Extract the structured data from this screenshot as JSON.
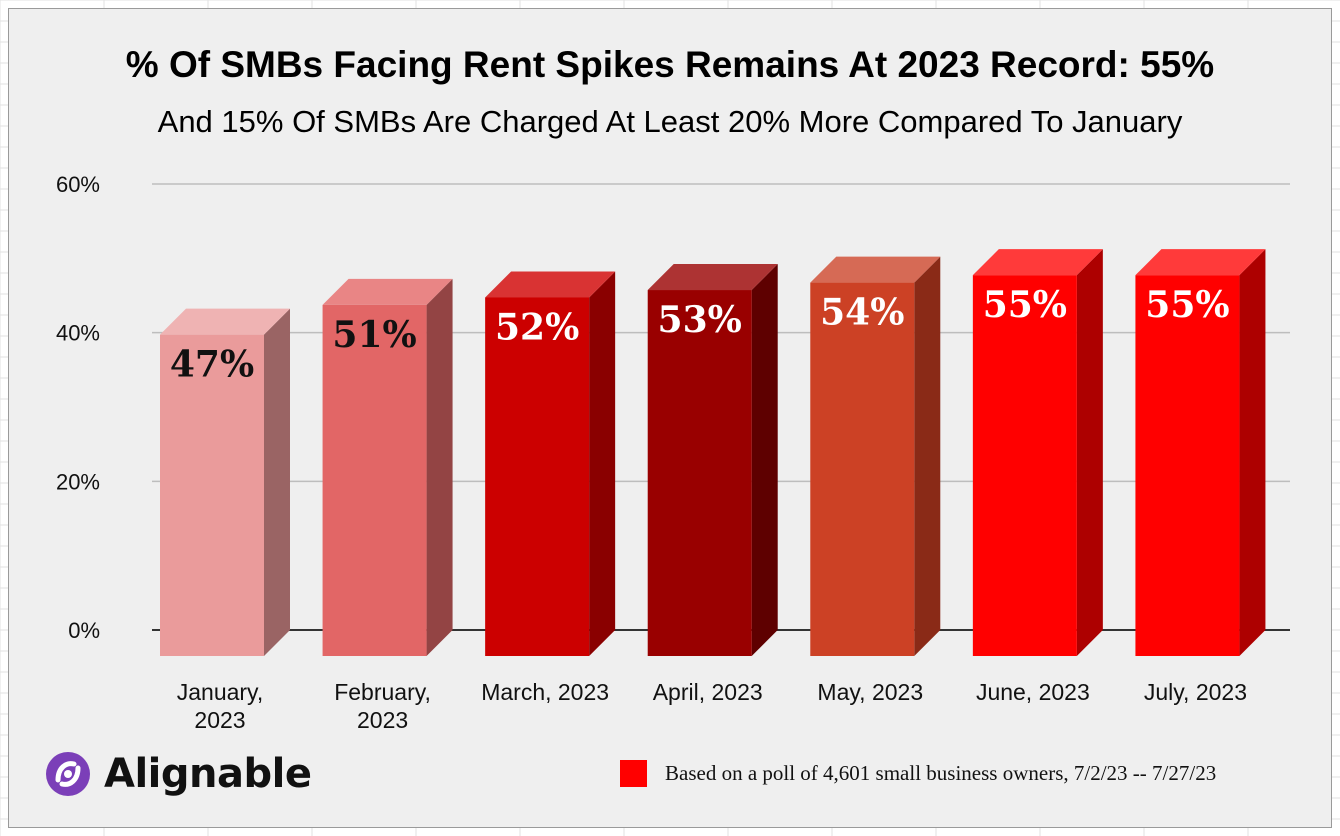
{
  "chart_data": {
    "type": "bar",
    "title": "% Of SMBs Facing Rent Spikes Remains At 2023 Record: 55%",
    "subtitle": "And 15% Of SMBs Are Charged At Least 20% More Compared To January",
    "xlabel": "",
    "ylabel": "",
    "ylim": [
      0,
      60
    ],
    "y_ticks": [
      "0%",
      "20%",
      "40%",
      "60%"
    ],
    "y_tick_values": [
      0,
      20,
      40,
      60
    ],
    "grid": true,
    "categories": [
      "January, 2023",
      "February, 2023",
      "March, 2023",
      "April, 2023",
      "May, 2023",
      "June, 2023",
      "July, 2023"
    ],
    "category_lines": [
      [
        "January,",
        "2023"
      ],
      [
        "February,",
        "2023"
      ],
      [
        "March, 2023"
      ],
      [
        "April, 2023"
      ],
      [
        "May, 2023"
      ],
      [
        "June, 2023"
      ],
      [
        "July, 2023"
      ]
    ],
    "values": [
      47,
      51,
      52,
      53,
      54,
      55,
      55
    ],
    "data_labels": [
      "47%",
      "51%",
      "52%",
      "53%",
      "54%",
      "55%",
      "55%"
    ],
    "bar_colors": [
      {
        "front": "#ea9b9b",
        "side": "#9a6464",
        "top": "#efb3b3",
        "label": "#111111"
      },
      {
        "front": "#e26666",
        "side": "#934444",
        "top": "#e98585",
        "label": "#111111"
      },
      {
        "front": "#cc0000",
        "side": "#8a0000",
        "top": "#d93333",
        "label": "#ffffff"
      },
      {
        "front": "#990000",
        "side": "#5e0000",
        "top": "#ad3333",
        "label": "#ffffff"
      },
      {
        "front": "#cc4125",
        "side": "#8a2a17",
        "top": "#d66a55",
        "label": "#ffffff"
      },
      {
        "front": "#ff0000",
        "side": "#ad0000",
        "top": "#ff3a3a",
        "label": "#ffffff"
      },
      {
        "front": "#ff0000",
        "side": "#ad0000",
        "top": "#ff3a3a",
        "label": "#ffffff"
      }
    ],
    "legend": {
      "label": "Based on a poll of 4,601 small business owners, 7/2/23 -- 7/27/23",
      "color": "#ff0000",
      "placement": "bottom-right"
    }
  },
  "branding": {
    "logo_text": "Alignable",
    "logo_color": "#7b3fb8"
  }
}
